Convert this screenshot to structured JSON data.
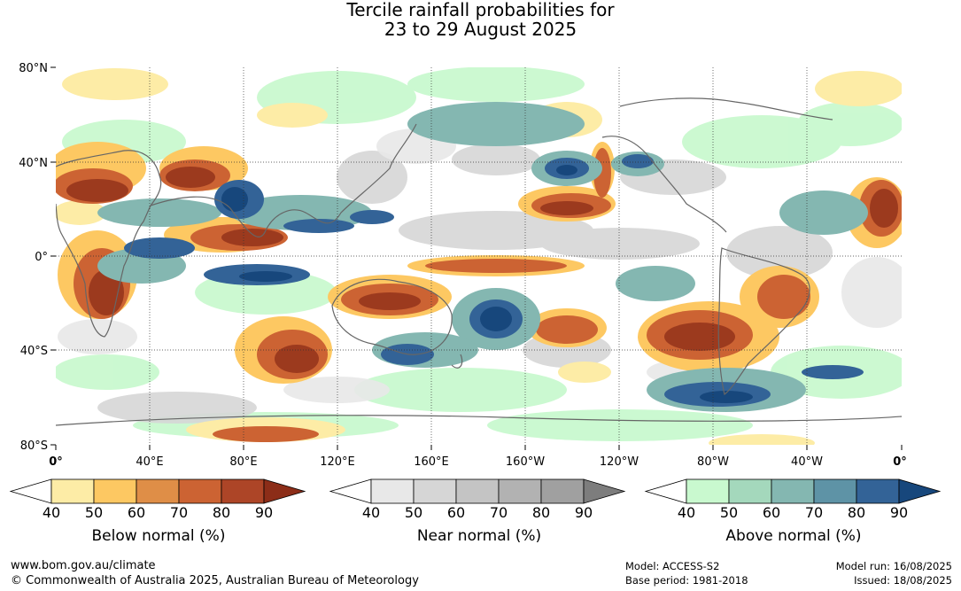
{
  "title": {
    "line1": "Tercile rainfall probabilities for",
    "line2": "23 to 29 August 2025"
  },
  "map": {
    "lat_labels": [
      "80°N",
      "40°N",
      "0°",
      "40°S",
      "80°S"
    ],
    "lon_labels": [
      "0°",
      "40°E",
      "80°E",
      "120°E",
      "160°E",
      "160°W",
      "120°W",
      "80°W",
      "40°W",
      "0°"
    ]
  },
  "colorbars": [
    {
      "caption": "Below normal (%)",
      "ticks": [
        "40",
        "50",
        "60",
        "70",
        "80",
        "90"
      ],
      "colors": [
        "#fdeca6",
        "#fdc862",
        "#df8e47",
        "#cc6333",
        "#ad4527",
        "#8c2d18"
      ]
    },
    {
      "caption": "Near normal (%)",
      "ticks": [
        "40",
        "50",
        "60",
        "70",
        "80",
        "90"
      ],
      "colors": [
        "#e8e8e8",
        "#d6d6d6",
        "#c4c4c4",
        "#b2b2b2",
        "#a0a0a0",
        "#7d7d7d"
      ]
    },
    {
      "caption": "Above normal (%)",
      "ticks": [
        "40",
        "50",
        "60",
        "70",
        "80",
        "90"
      ],
      "colors": [
        "#c9f9cf",
        "#a4d8bc",
        "#84b7b1",
        "#5e93a6",
        "#336397",
        "#17477c"
      ]
    }
  ],
  "footer": {
    "website": "www.bom.gov.au/climate",
    "copyright": "© Commonwealth of Australia 2025, Australian Bureau of Meteorology",
    "model": "Model: ACCESS-S2",
    "base_period": "Base period: 1981-2018",
    "model_run": "Model run: 16/08/2025",
    "issued": "Issued: 18/08/2025"
  }
}
